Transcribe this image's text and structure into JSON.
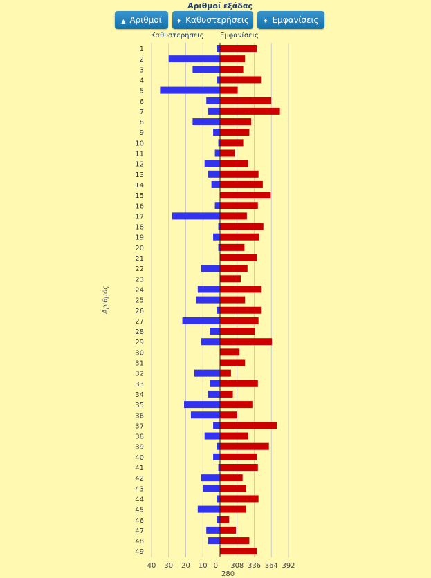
{
  "chart_data": {
    "type": "bar",
    "title": "Αριθμοί εξάδας",
    "ylabel": "Αριθμός",
    "left_series_label": "Καθυστερήσεις",
    "right_series_label": "Εμφανίσεις",
    "left_ticks": [
      "40",
      "30",
      "20",
      "10",
      "0"
    ],
    "right_ticks": [
      "280",
      "308",
      "336",
      "364",
      "392"
    ],
    "left_range": [
      0,
      40
    ],
    "right_range": [
      280,
      392
    ],
    "categories": [
      "1",
      "2",
      "3",
      "4",
      "5",
      "6",
      "7",
      "8",
      "9",
      "10",
      "11",
      "12",
      "13",
      "14",
      "15",
      "16",
      "17",
      "18",
      "19",
      "20",
      "21",
      "22",
      "23",
      "24",
      "25",
      "26",
      "27",
      "28",
      "29",
      "30",
      "31",
      "32",
      "33",
      "34",
      "35",
      "36",
      "37",
      "38",
      "39",
      "40",
      "41",
      "42",
      "43",
      "44",
      "45",
      "46",
      "47",
      "48",
      "49"
    ],
    "series": [
      {
        "name": "Καθυστερήσεις",
        "color": "#3333ee",
        "values": [
          2,
          30,
          16,
          2,
          35,
          8,
          7,
          16,
          4,
          1,
          3,
          9,
          7,
          5,
          0,
          3,
          28,
          1,
          4,
          1,
          0,
          11,
          0,
          13,
          14,
          2,
          22,
          6,
          11,
          0,
          0,
          15,
          6,
          7,
          21,
          17,
          4,
          9,
          2,
          4,
          1,
          11,
          10,
          2,
          13,
          2,
          8,
          7,
          0
        ]
      },
      {
        "name": "Εμφανίσεις",
        "color": "#cc0000",
        "values": [
          340,
          321,
          318,
          347,
          309,
          364,
          378,
          331,
          328,
          318,
          304,
          326,
          343,
          350,
          363,
          342,
          324,
          351,
          344,
          320,
          340,
          325,
          314,
          347,
          321,
          347,
          343,
          337,
          365,
          312,
          321,
          298,
          342,
          301,
          333,
          308,
          373,
          326,
          360,
          340,
          342,
          317,
          323,
          343,
          323,
          295,
          306,
          328,
          340
        ]
      }
    ]
  },
  "buttons": {
    "numbers": "Αριθμοί",
    "delays": "Καθυστερήσεις",
    "appearances": "Εμφανίσεις"
  }
}
